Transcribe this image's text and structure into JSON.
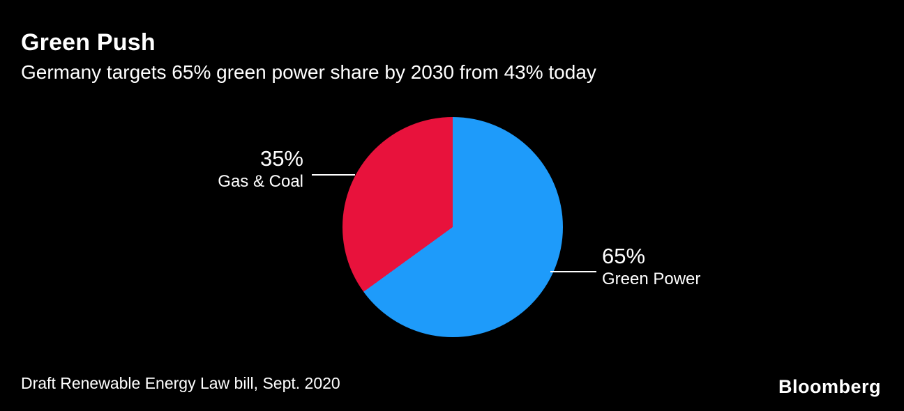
{
  "header": {
    "title": "Green Push",
    "subtitle": "Germany targets 65% green power share by 2030 from 43% today"
  },
  "labels": {
    "left_pct": "35%",
    "left_name": "Gas & Coal",
    "right_pct": "65%",
    "right_name": "Green Power"
  },
  "footer": {
    "source": "Draft Renewable Energy Law bill, Sept. 2020",
    "brand": "Bloomberg"
  },
  "colors": {
    "background": "#000000",
    "text": "#ffffff",
    "green_power_blue": "#1e9bfa",
    "gas_coal_red": "#e8123c"
  },
  "chart_data": {
    "type": "pie",
    "title": "Green Push",
    "subtitle": "Germany targets 65% green power share by 2030 from 43% today",
    "slices": [
      {
        "label": "Green Power",
        "value": 65,
        "color": "#1e9bfa"
      },
      {
        "label": "Gas & Coal",
        "value": 35,
        "color": "#e8123c"
      }
    ],
    "start_angle_deg": 0,
    "direction": "clockwise",
    "legend_position": "callout-labels",
    "grid": false,
    "source": "Draft Renewable Energy Law bill, Sept. 2020"
  }
}
